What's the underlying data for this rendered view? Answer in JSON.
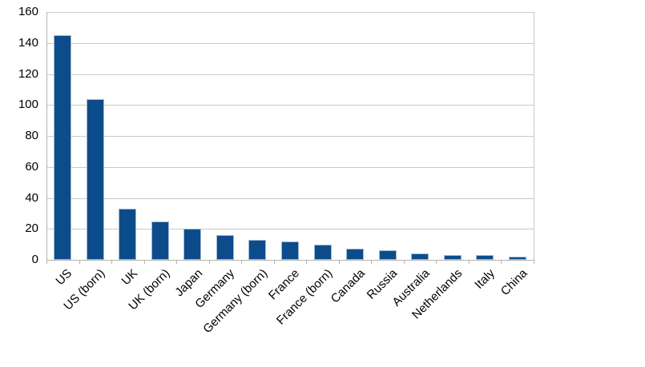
{
  "chart_data": {
    "type": "bar",
    "title": "",
    "xlabel": "",
    "ylabel": "",
    "categories": [
      "US",
      "US (born)",
      "UK",
      "UK (born)",
      "Japan",
      "Germany",
      "Germany (born)",
      "France",
      "France (born)",
      "Canada",
      "Russia",
      "Australia",
      "Netherlands",
      "Italy",
      "China"
    ],
    "values": [
      145,
      104,
      33,
      25,
      20,
      16,
      13,
      12,
      10,
      7,
      6,
      4,
      3,
      3,
      2
    ],
    "ylim": [
      0,
      160
    ],
    "yticks": [
      0,
      20,
      40,
      60,
      80,
      100,
      120,
      140,
      160
    ],
    "grid": true,
    "legend": "none",
    "colors": {
      "bar_fill": "#0D4C8A",
      "bar_border": "#9FB9D0",
      "gridline": "#C9C9C9",
      "axis_line": "#B3B3B3",
      "label_text": "#000000",
      "background": "#FFFFFF"
    }
  }
}
